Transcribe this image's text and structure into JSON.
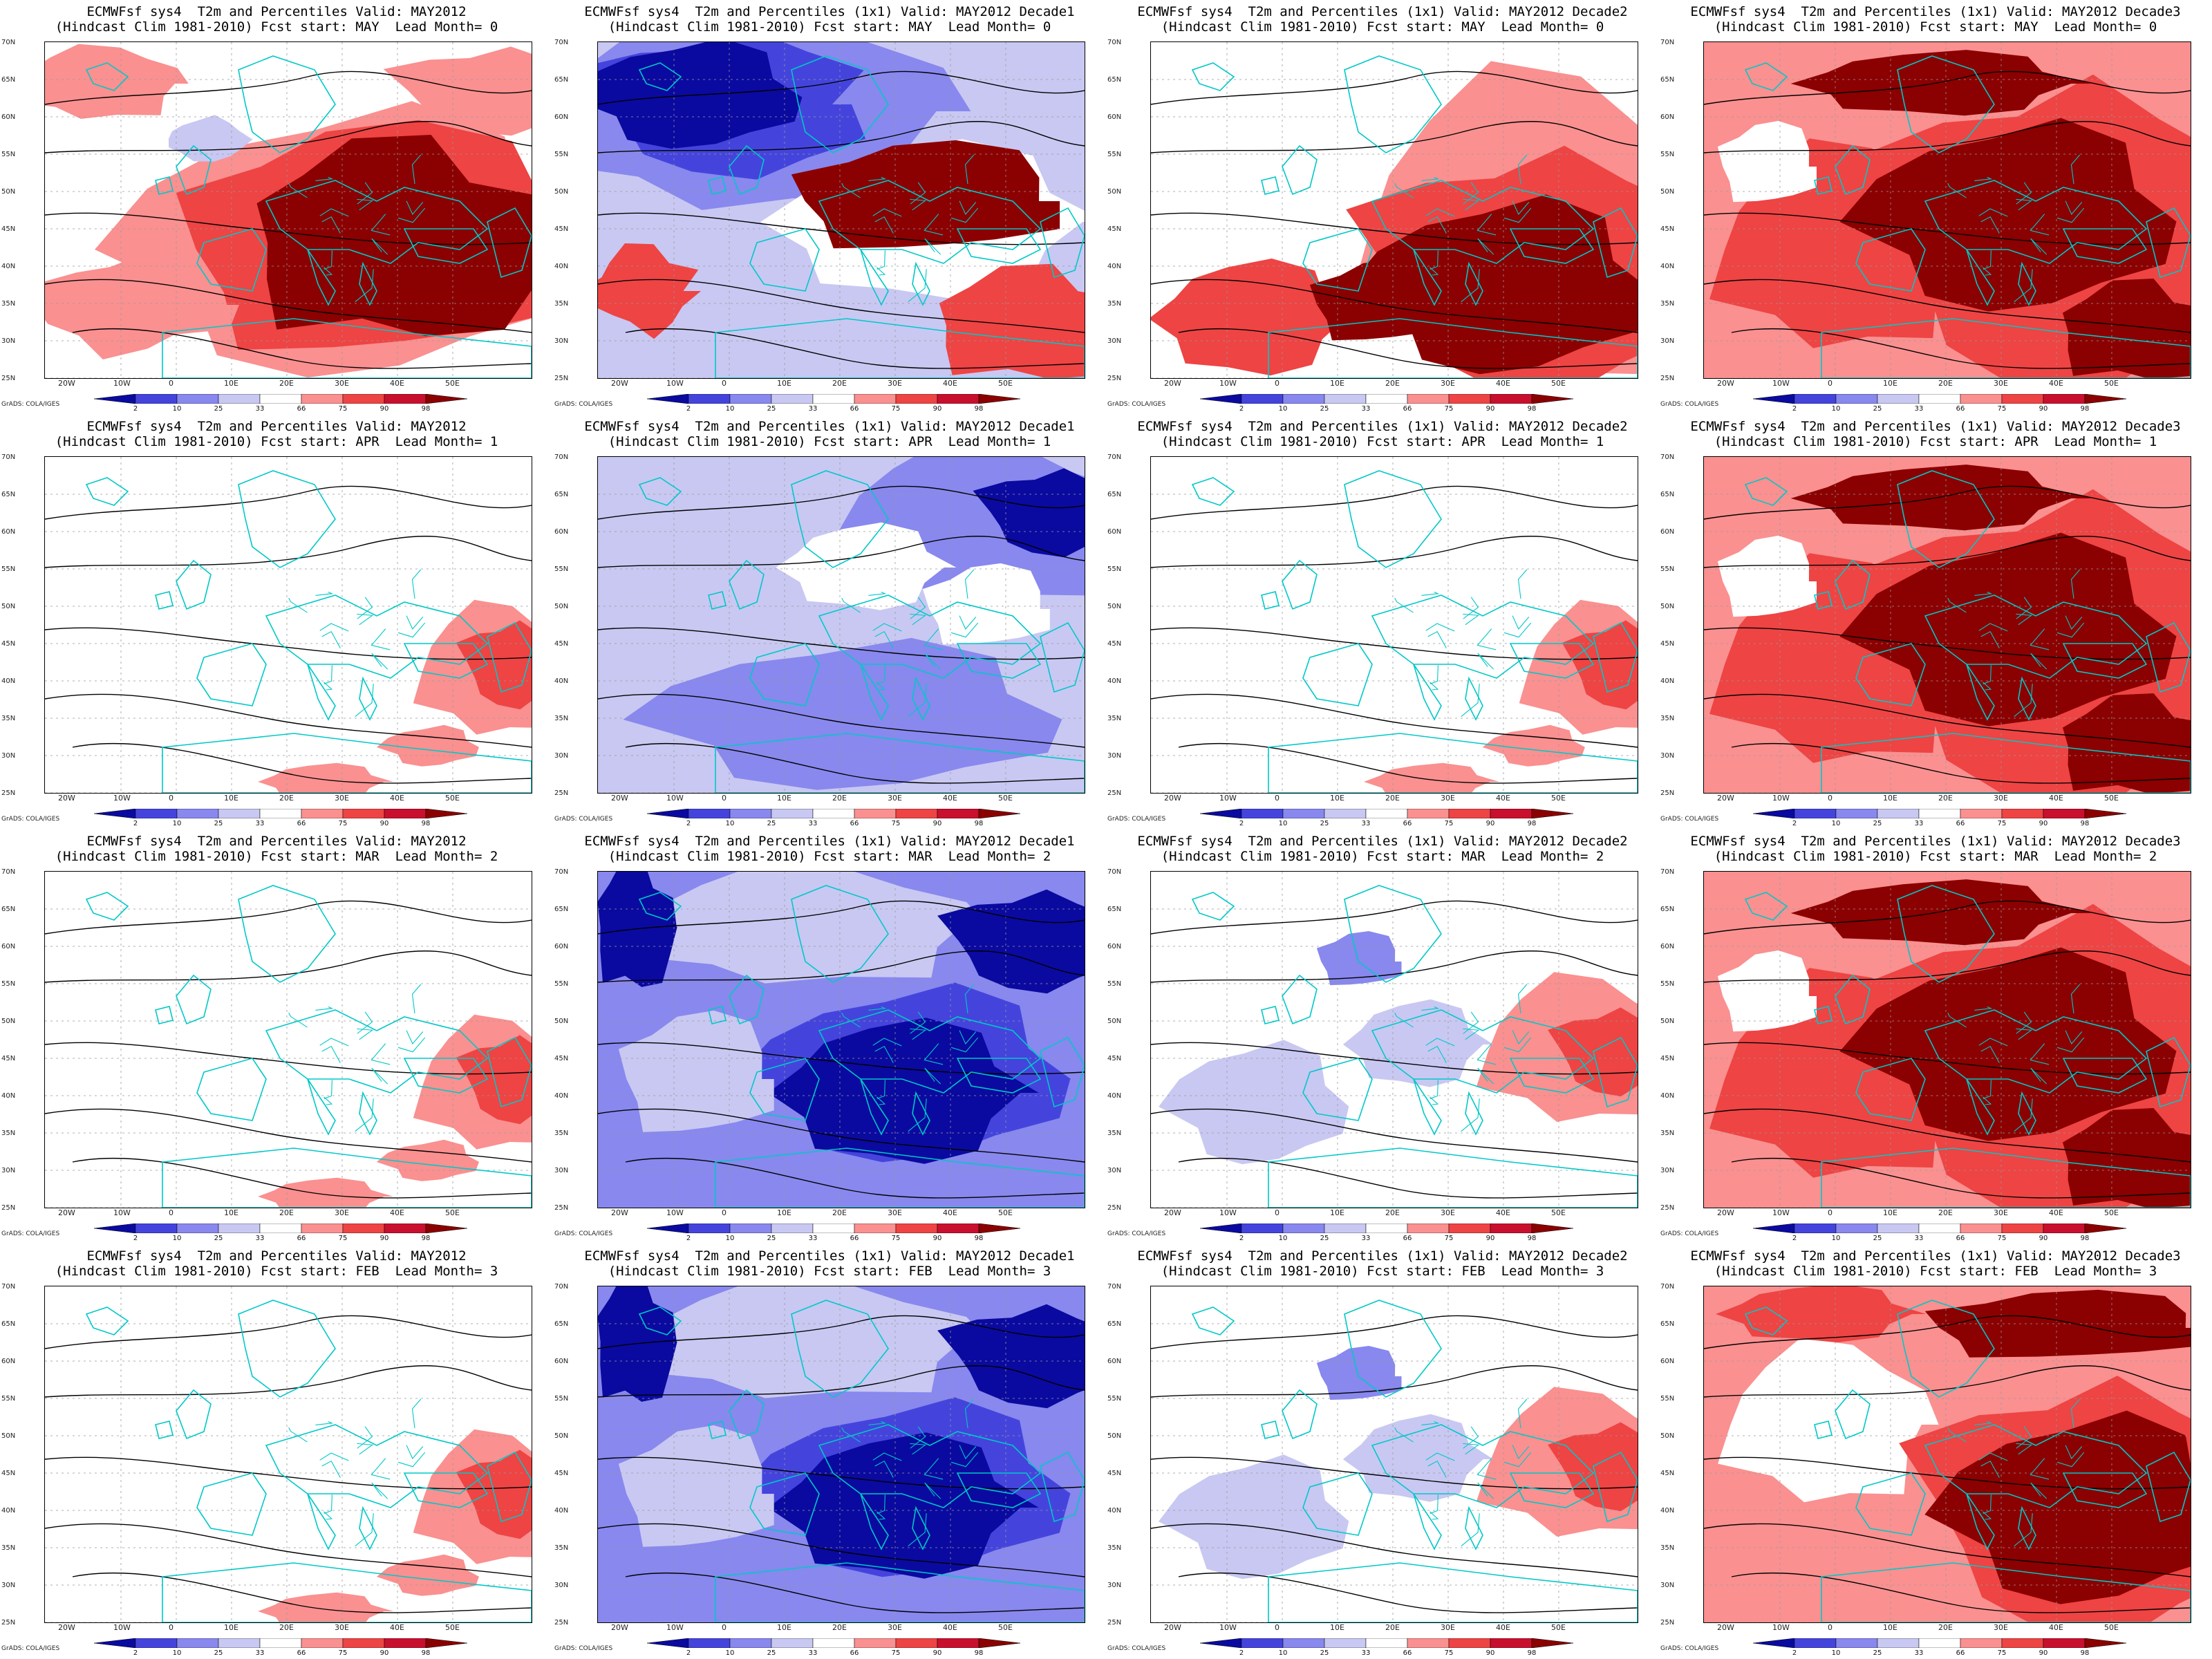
{
  "colors": {
    "c98": "#8b0000",
    "c90": "#c8102e",
    "c75": "#ee4444",
    "c66": "#fa9090",
    "c50": "#ffffff",
    "c33": "#c8c8f2",
    "c25": "#8888ee",
    "c10": "#4444dd",
    "c2": "#0a0aa0",
    "coast": "#00c8c8",
    "contour": "#000000"
  },
  "latitude_labels": [
    "70N",
    "65N",
    "60N",
    "55N",
    "50N",
    "45N",
    "40N",
    "35N",
    "30N",
    "25N"
  ],
  "longitude_labels": [
    "20W",
    "10W",
    "0",
    "10E",
    "20E",
    "30E",
    "40E",
    "50E"
  ],
  "colorbar": {
    "ticks": [
      "2",
      "10",
      "25",
      "33",
      "66",
      "75",
      "90",
      "98"
    ]
  },
  "credit": "GrADS: COLA/IGES",
  "panels": [
    {
      "id": "r0c0",
      "title1": "ECMWFsf sys4  T2m and Percentiles Valid: MAY2012",
      "title2": "(Hindcast Clim 1981-2010) Fcst start: MAY  Lead Month= 0",
      "pattern": "warm_east"
    },
    {
      "id": "r0c1",
      "title1": "ECMWFsf sys4  T2m and Percentiles (1x1) Valid: MAY2012 Decade1",
      "title2": "(Hindcast Clim 1981-2010) Fcst start: MAY  Lead Month= 0",
      "pattern": "cold_north_warm_center"
    },
    {
      "id": "r0c2",
      "title1": "ECMWFsf sys4  T2m and Percentiles (1x1) Valid: MAY2012 Decade2",
      "title2": "(Hindcast Clim 1981-2010) Fcst start: MAY  Lead Month= 0",
      "pattern": "warm_southeast"
    },
    {
      "id": "r0c3",
      "title1": "ECMWFsf sys4  T2m and Percentiles (1x1) Valid: MAY2012 Decade3",
      "title2": "(Hindcast Clim 1981-2010) Fcst start: MAY  Lead Month= 0",
      "pattern": "warm_all"
    },
    {
      "id": "r1c0",
      "title1": "ECMWFsf sys4  T2m and Percentiles Valid: MAY2012",
      "title2": "(Hindcast Clim 1981-2010) Fcst start: APR  Lead Month= 1",
      "pattern": "neutral_warm_se"
    },
    {
      "id": "r1c1",
      "title1": "ECMWFsf sys4  T2m and Percentiles (1x1) Valid: MAY2012 Decade1",
      "title2": "(Hindcast Clim 1981-2010) Fcst start: APR  Lead Month= 1",
      "pattern": "cold_mild"
    },
    {
      "id": "r1c2",
      "title1": "ECMWFsf sys4  T2m and Percentiles (1x1) Valid: MAY2012 Decade2",
      "title2": "(Hindcast Clim 1981-2010) Fcst start: APR  Lead Month= 1",
      "pattern": "neutral_warm_se"
    },
    {
      "id": "r1c3",
      "title1": "ECMWFsf sys4  T2m and Percentiles (1x1) Valid: MAY2012 Decade3",
      "title2": "(Hindcast Clim 1981-2010) Fcst start: APR  Lead Month= 1",
      "pattern": "warm_all"
    },
    {
      "id": "r2c0",
      "title1": "ECMWFsf sys4  T2m and Percentiles Valid: MAY2012",
      "title2": "(Hindcast Clim 1981-2010) Fcst start: MAR  Lead Month= 2",
      "pattern": "neutral_warm_se"
    },
    {
      "id": "r2c1",
      "title1": "ECMWFsf sys4  T2m and Percentiles (1x1) Valid: MAY2012 Decade1",
      "title2": "(Hindcast Clim 1981-2010) Fcst start: MAR  Lead Month= 2",
      "pattern": "cold_strong"
    },
    {
      "id": "r2c2",
      "title1": "ECMWFsf sys4  T2m and Percentiles (1x1) Valid: MAY2012 Decade2",
      "title2": "(Hindcast Clim 1981-2010) Fcst start: MAR  Lead Month= 2",
      "pattern": "neutral_mix"
    },
    {
      "id": "r2c3",
      "title1": "ECMWFsf sys4  T2m and Percentiles (1x1) Valid: MAY2012 Decade3",
      "title2": "(Hindcast Clim 1981-2010) Fcst start: MAR  Lead Month= 2",
      "pattern": "warm_all"
    },
    {
      "id": "r3c0",
      "title1": "ECMWFsf sys4  T2m and Percentiles Valid: MAY2012",
      "title2": "(Hindcast Clim 1981-2010) Fcst start: FEB  Lead Month= 3",
      "pattern": "neutral_warm_se"
    },
    {
      "id": "r3c1",
      "title1": "ECMWFsf sys4  T2m and Percentiles (1x1) Valid: MAY2012 Decade1",
      "title2": "(Hindcast Clim 1981-2010) Fcst start: FEB  Lead Month= 3",
      "pattern": "cold_strong"
    },
    {
      "id": "r3c2",
      "title1": "ECMWFsf sys4  T2m and Percentiles (1x1) Valid: MAY2012 Decade2",
      "title2": "(Hindcast Clim 1981-2010) Fcst start: FEB  Lead Month= 3",
      "pattern": "neutral_mix"
    },
    {
      "id": "r3c3",
      "title1": "ECMWFsf sys4  T2m and Percentiles (1x1) Valid: MAY2012 Decade3",
      "title2": "(Hindcast Clim 1981-2010) Fcst start: FEB  Lead Month= 3",
      "pattern": "warm_east_strong"
    }
  ]
}
